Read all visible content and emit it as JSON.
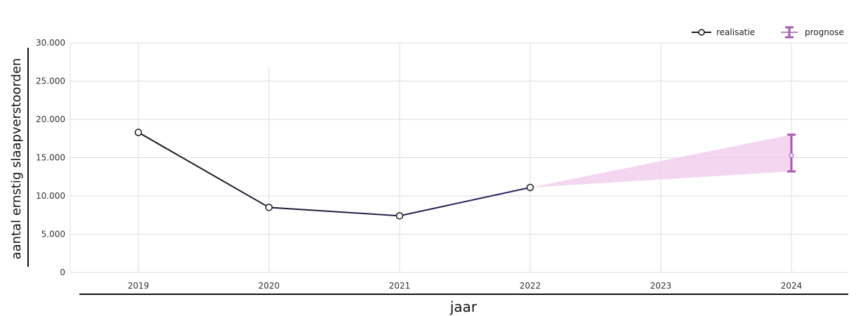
{
  "chart_data": {
    "type": "line",
    "xlabel": "jaar",
    "ylabel": "aantal ernstig slaapverstoorden",
    "categories": [
      "2019",
      "2020",
      "2021",
      "2022",
      "2023",
      "2024"
    ],
    "ylim": [
      0,
      30000
    ],
    "y_ticks": [
      "0",
      "5.000",
      "10.000",
      "15.000",
      "20.000",
      "25.000",
      "30.000"
    ],
    "y_tick_values": [
      0,
      5000,
      10000,
      15000,
      20000,
      25000,
      30000
    ],
    "grid": true,
    "legend_position": "top-right",
    "series": [
      {
        "name": "realisatie",
        "x": [
          "2019",
          "2020",
          "2021",
          "2022"
        ],
        "values": [
          18300,
          8500,
          7400,
          11100
        ]
      },
      {
        "name": "prognose",
        "x": [
          "2024"
        ],
        "values": [
          15300
        ],
        "lower": [
          13200
        ],
        "upper": [
          18000
        ]
      }
    ],
    "forecast_band": {
      "x": [
        "2022",
        "2024"
      ],
      "lower": [
        11100,
        13200
      ],
      "upper": [
        11100,
        18000
      ]
    },
    "colors": {
      "realisatie_line_start": "#1a1a1a",
      "realisatie_line_end": "#2a2466",
      "prognose": "#a65ab3",
      "band": "#f0c8ec",
      "grid": "#dcdce6"
    }
  }
}
